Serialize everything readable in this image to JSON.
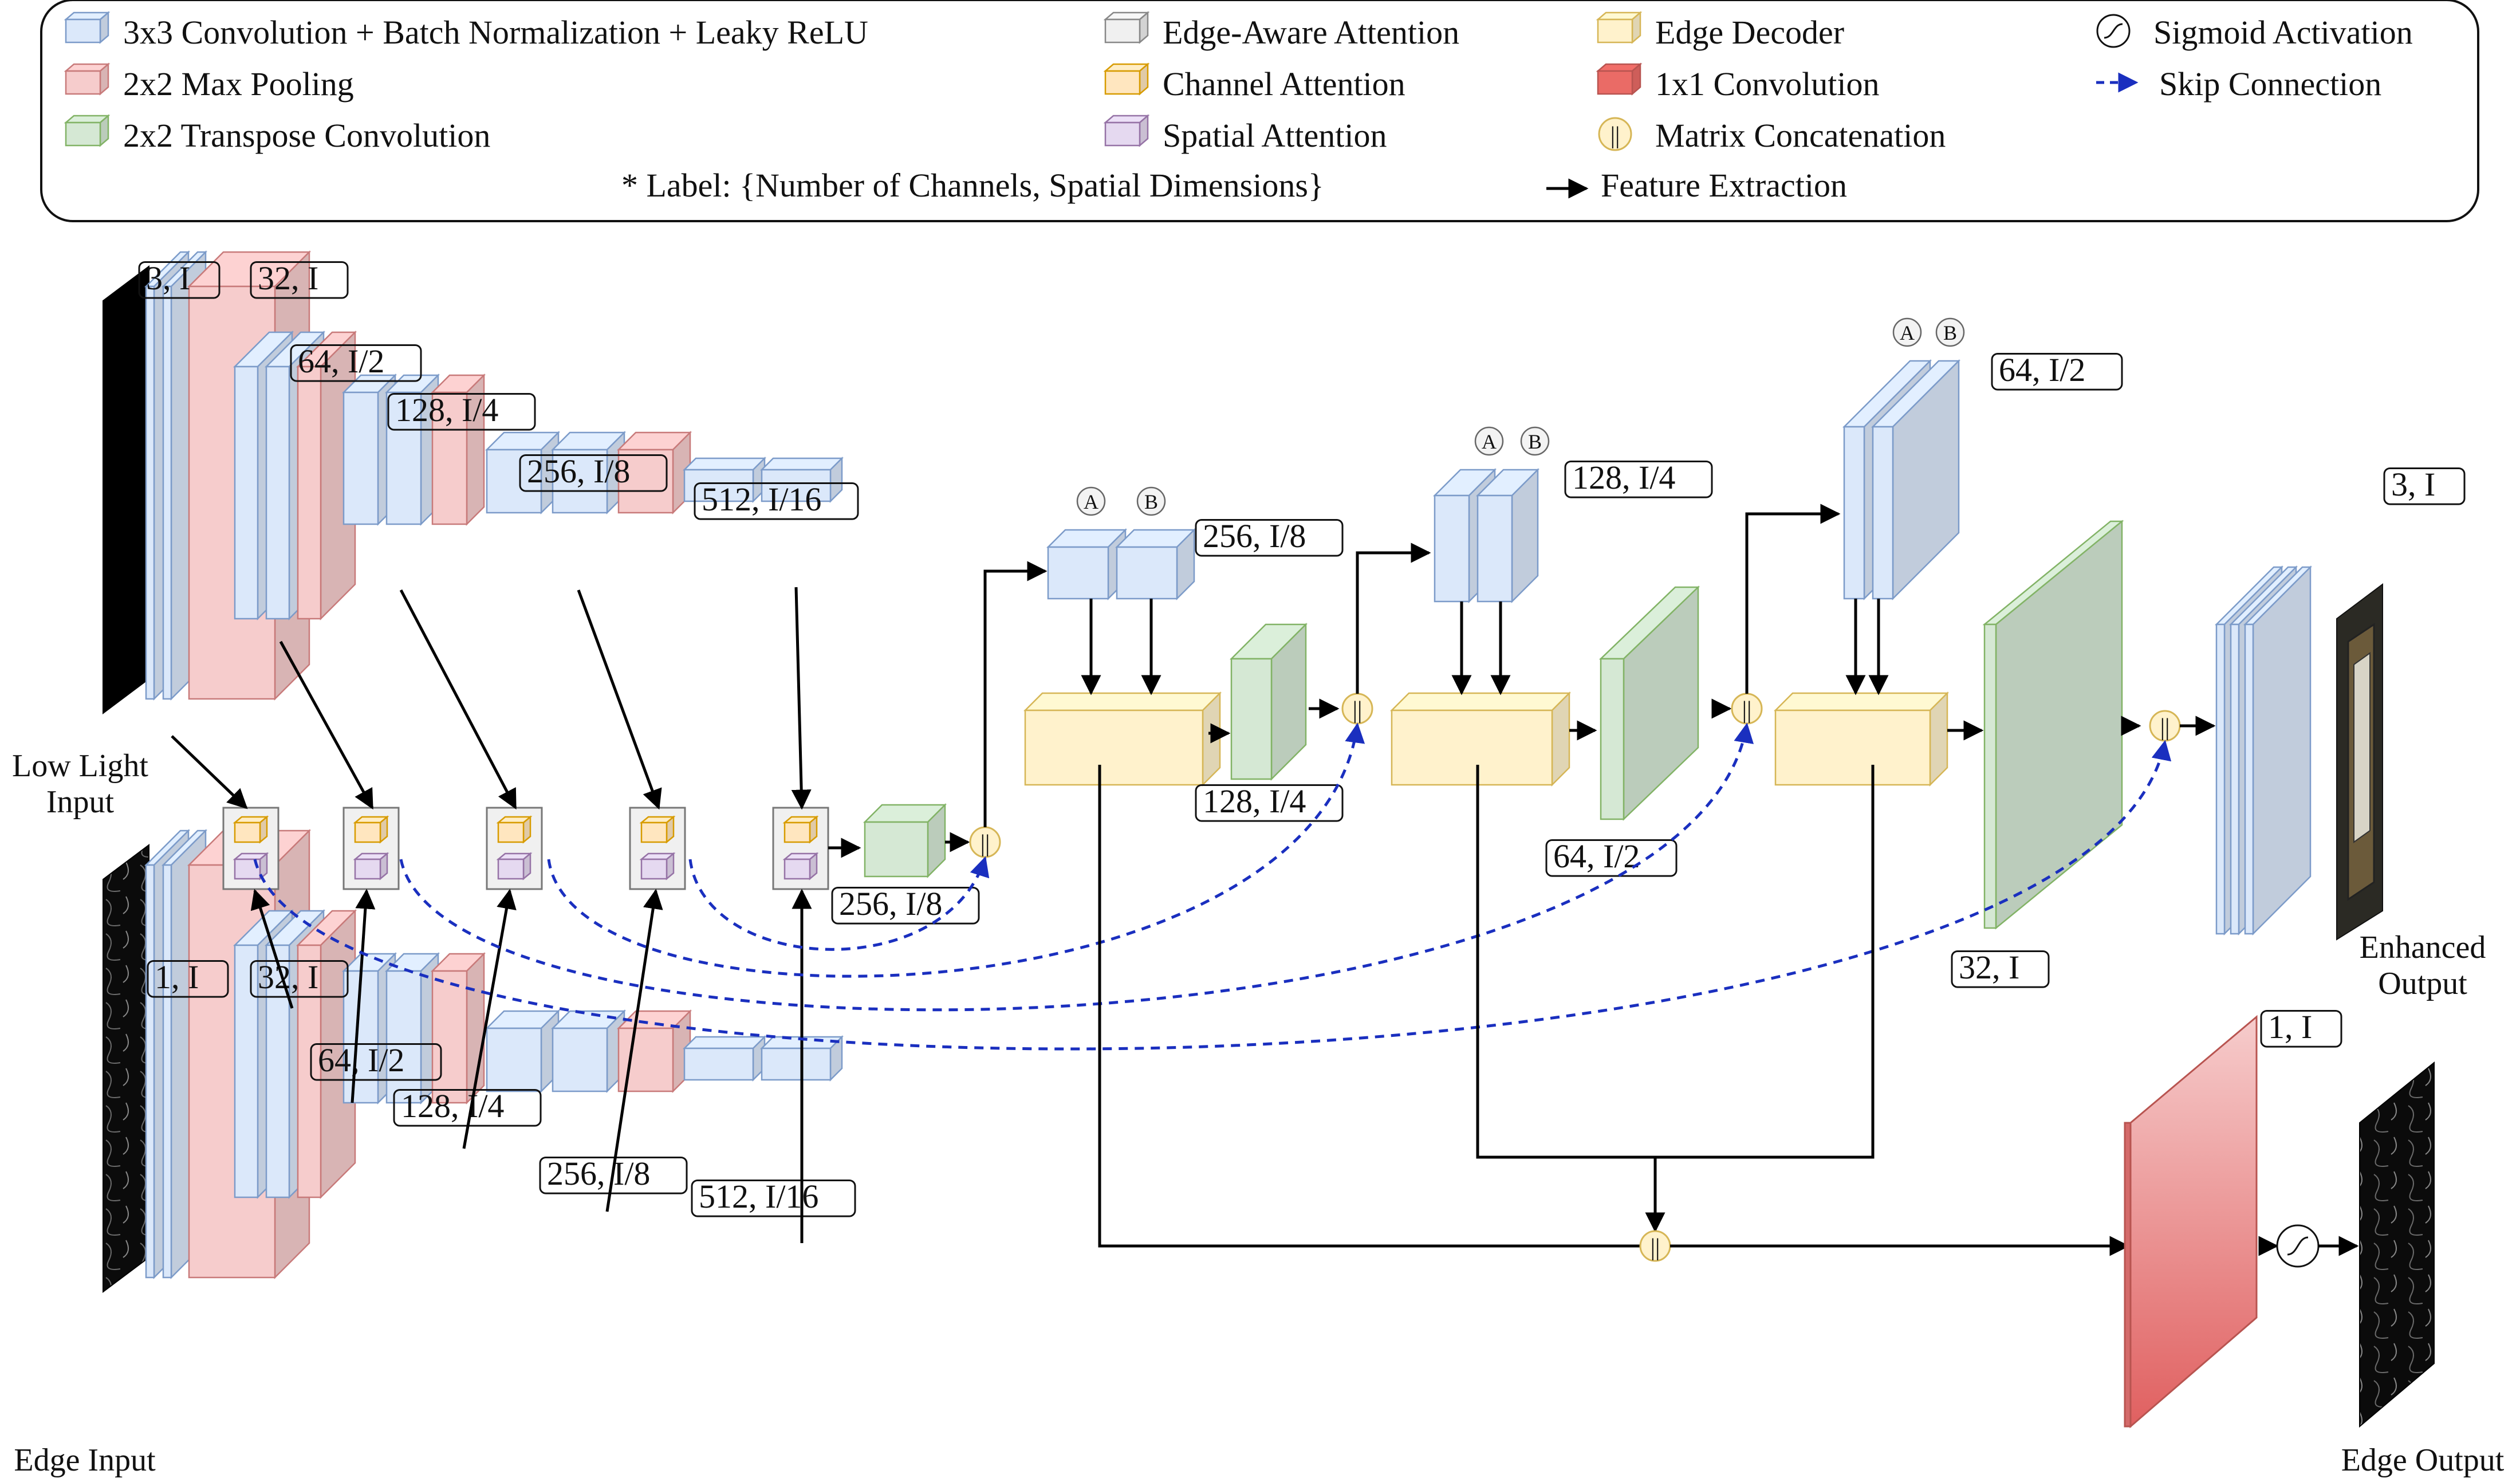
{
  "legend": {
    "items": [
      {
        "label": "3x3 Convolution + Batch Normalization + Leaky ReLU",
        "icon": "conv-cube-icon",
        "color": "#dbe8fa"
      },
      {
        "label": "2x2 Max Pooling",
        "icon": "maxpool-cube-icon",
        "color": "#f6cccc"
      },
      {
        "label": "2x2 Transpose Convolution",
        "icon": "transpose-conv-cube-icon",
        "color": "#d5e8d4"
      },
      {
        "label": "Edge-Aware Attention",
        "icon": "edge-attention-icon",
        "color": "#f0f0f0"
      },
      {
        "label": "Channel Attention",
        "icon": "channel-attention-icon",
        "color": "#ffe6bf"
      },
      {
        "label": "Spatial Attention",
        "icon": "spatial-attention-icon",
        "color": "#e5d9f0"
      },
      {
        "label": "Edge Decoder",
        "icon": "edge-decoder-icon",
        "color": "#fff2cc"
      },
      {
        "label": "1x1 Convolution",
        "icon": "conv1x1-cube-icon",
        "color": "#ea6b66"
      },
      {
        "label": "Matrix Concatenation",
        "icon": "concat-icon",
        "color": "#fff2cc"
      },
      {
        "label": "Sigmoid Activation",
        "icon": "sigmoid-icon",
        "color": "#ffffff"
      },
      {
        "label": "Skip Connection",
        "icon": "skip-arrow-icon",
        "color": "#1a2fbf"
      },
      {
        "label": "Feature Extraction",
        "icon": "feature-arrow-icon",
        "color": "#000000"
      }
    ],
    "note": "* Label: {Number of Channels, Spatial Dimensions}"
  },
  "labels": {
    "enc_top": [
      "3, I",
      "32, I",
      "64, I/2",
      "128, I/4",
      "256, I/8",
      "512, I/16"
    ],
    "enc_bottom": [
      "1, I",
      "32, I",
      "64, I/2",
      "128, I/4",
      "256, I/8",
      "512, I/16"
    ],
    "bottleneck": "256, I/8",
    "dec1": "256, I/8",
    "dec1_up": "128, I/4",
    "dec2": "128, I/4",
    "dec2_up": "64, I/2",
    "dec3": "64, I/2",
    "dec3_up": "32, I",
    "out_top": "3, I",
    "out_bottom": "1, I",
    "concat_symbol": "||",
    "branch_a": "A",
    "branch_b": "B"
  },
  "io": {
    "low_light_input": [
      "Low Light",
      "Input"
    ],
    "edge_input": "Edge Input",
    "enhanced_output": [
      "Enhanced",
      "Output"
    ],
    "edge_output": "Edge Output"
  },
  "colors": {
    "conv": "#dbe8fa",
    "conv_stroke": "#7c9bc9",
    "pool": "#f6cccc",
    "pool_stroke": "#c87a7a",
    "tconv": "#d5e8d4",
    "tconv_stroke": "#82b366",
    "decoder": "#fff2cc",
    "decoder_stroke": "#d6b656",
    "channel_att": "#ffe6bf",
    "channel_stroke": "#d79b00",
    "spatial_att": "#e5d9f0",
    "spatial_stroke": "#9673a6",
    "edge_att": "#f0f0f0",
    "conv1x1": "#ea6b66",
    "skip": "#1a2fbf"
  }
}
